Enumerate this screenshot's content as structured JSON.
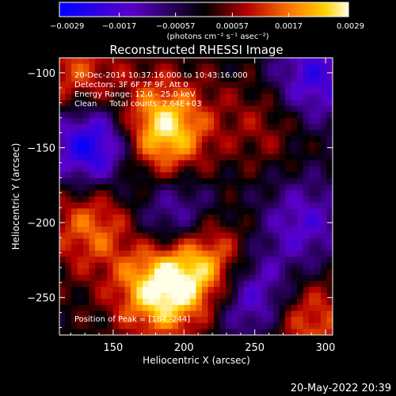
{
  "chart_data": {
    "type": "heatmap",
    "title": "Reconstructed RHESSI Image",
    "xlabel": "Heliocentric X (arcsec)",
    "ylabel": "Heliocentric Y (arcsec)",
    "xlim": [
      112,
      305
    ],
    "ylim": [
      -275,
      -90
    ],
    "x_ticks": [
      150,
      200,
      250,
      300
    ],
    "y_ticks": [
      -100,
      -150,
      -200,
      -250
    ],
    "x_tick_labels": [
      "150",
      "200",
      "250",
      "300"
    ],
    "y_tick_labels": [
      "−100",
      "−150",
      "−200",
      "−250"
    ],
    "colorbar": {
      "range": [
        -0.0029,
        0.0029
      ],
      "ticks": [
        -0.0029,
        -0.0017,
        -0.00057,
        0.00057,
        0.0017,
        0.0029
      ],
      "tick_labels": [
        "−0.0029",
        "−0.0017",
        "−0.00057",
        "0.00057",
        "0.0017",
        "0.0029"
      ],
      "unit_label": "(photons cm⁻² s⁻¹ asec⁻²)"
    },
    "annotations": [
      "20-Dec-2014 10:37:16.000 to 10:43:16.000",
      "Detectors: 3F 6F 7F 9F, Att 0",
      "Energy Range: 12.0 - 25.0 keV",
      "Clean     Total counts: 2.64E+03"
    ],
    "peak_label": "Position of Peak = [184,-244]",
    "peak_position": [
      184,
      -244
    ],
    "sources": [
      {
        "x": 185,
        "y": -138,
        "amplitude": 0.0029
      },
      {
        "x": 184,
        "y": -244,
        "amplitude": 0.0029
      },
      {
        "x": 215,
        "y": -225,
        "amplitude": 0.0024
      },
      {
        "x": 135,
        "y": -200,
        "amplitude": 0.0017
      },
      {
        "x": 125,
        "y": -105,
        "amplitude": 0.0015
      },
      {
        "x": 285,
        "y": -265,
        "amplitude": 0.0017
      },
      {
        "x": 260,
        "y": -130,
        "amplitude": 0.0009
      },
      {
        "x": 135,
        "y": -148,
        "amplitude": -0.0029
      },
      {
        "x": 195,
        "y": -200,
        "amplitude": -0.002
      },
      {
        "x": 250,
        "y": -250,
        "amplitude": -0.0022
      },
      {
        "x": 290,
        "y": -105,
        "amplitude": -0.0021
      },
      {
        "x": 285,
        "y": -200,
        "amplitude": -0.0016
      }
    ]
  },
  "footer_date": "20-May-2022 20:39"
}
